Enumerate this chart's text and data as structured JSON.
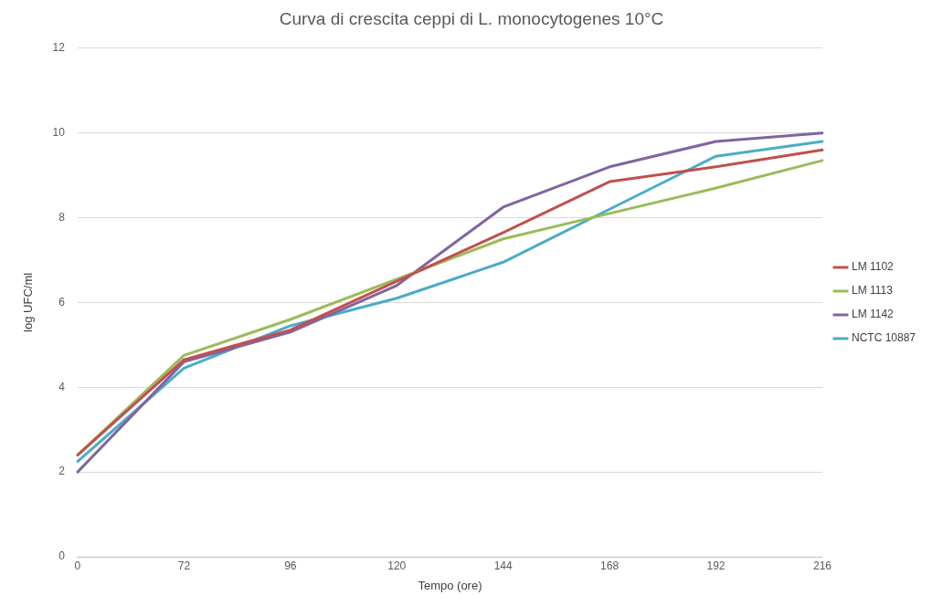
{
  "chart_data": {
    "type": "line",
    "title": "Curva di crescita ceppi di L. monocytogenes 10°C",
    "xlabel": "Tempo (ore)",
    "ylabel": "log UFC/ml",
    "categories": [
      "0",
      "72",
      "96",
      "120",
      "144",
      "168",
      "192",
      "216"
    ],
    "series": [
      {
        "name": "LM 1102",
        "color": "#c0504d",
        "values": [
          2.4,
          4.65,
          5.35,
          6.5,
          7.65,
          8.85,
          9.2,
          9.6
        ]
      },
      {
        "name": "LM 1113",
        "color": "#9bbb59",
        "values": [
          2.4,
          4.75,
          5.6,
          6.55,
          7.5,
          8.1,
          8.7,
          9.35
        ]
      },
      {
        "name": "LM 1142",
        "color": "#8064a2",
        "values": [
          2.0,
          4.6,
          5.3,
          6.4,
          8.25,
          9.2,
          9.8,
          10.0
        ]
      },
      {
        "name": "NCTC 10887",
        "color": "#4bacc6",
        "values": [
          2.25,
          4.45,
          5.45,
          6.1,
          6.95,
          8.2,
          9.45,
          9.8
        ]
      }
    ],
    "ylim": [
      0,
      12
    ],
    "yticks": [
      0,
      2,
      4,
      6,
      8,
      10,
      12
    ],
    "grid": "y",
    "legend": "right",
    "marker": "none",
    "line_style": "solid"
  }
}
